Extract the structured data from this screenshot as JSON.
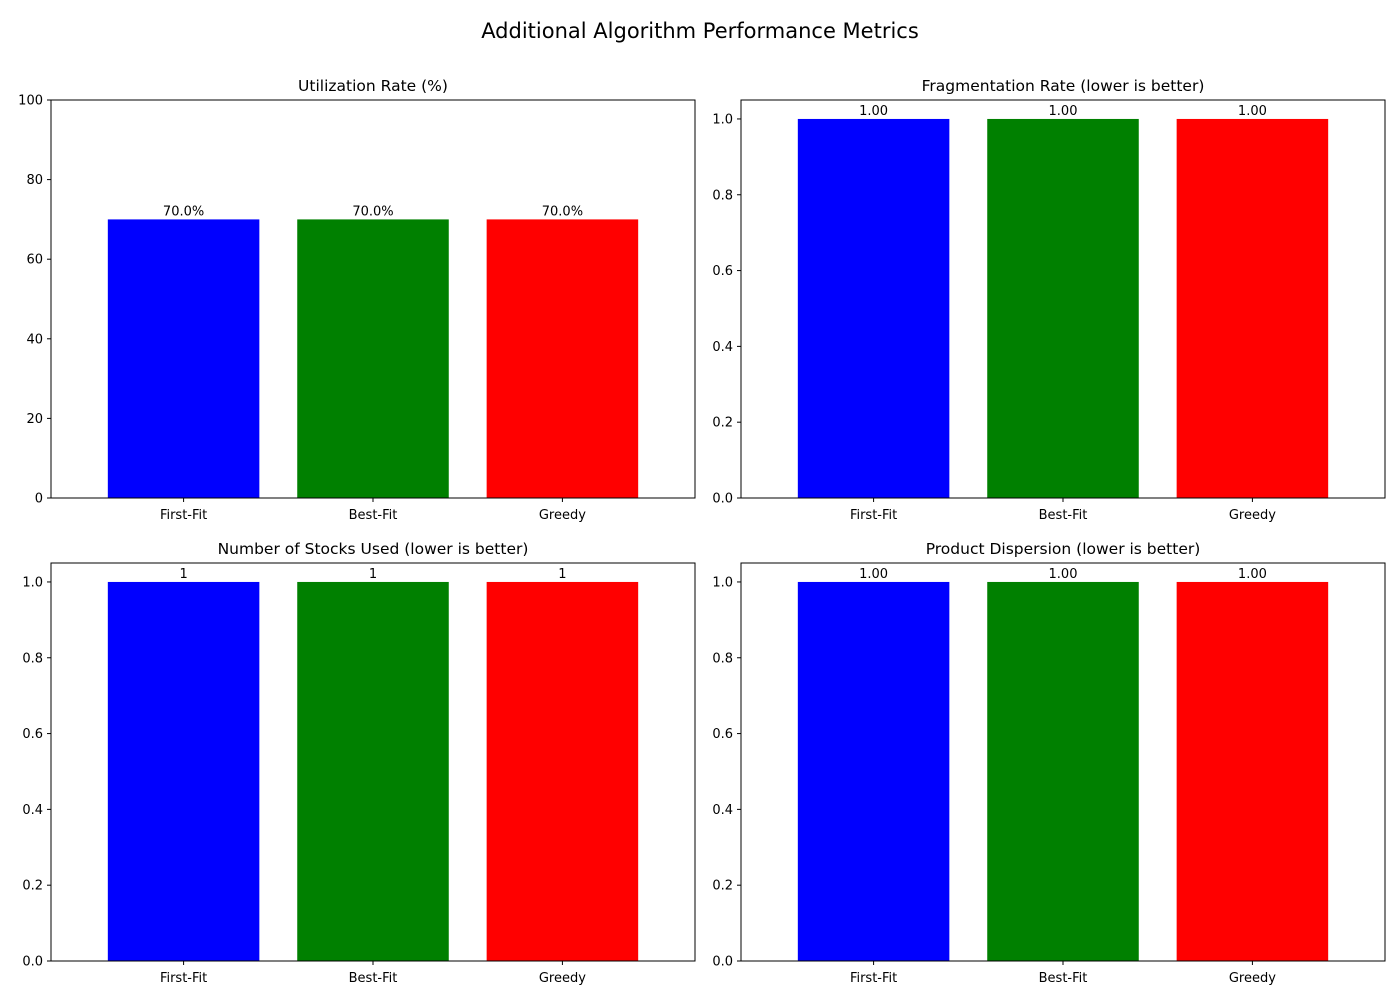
{
  "figure_title": "Additional Algorithm Performance Metrics",
  "bar_colors": [
    "#0000ff",
    "#008000",
    "#ff0000"
  ],
  "chart_data": [
    {
      "type": "bar",
      "title": "Utilization Rate (%)",
      "categories": [
        "First-Fit",
        "Best-Fit",
        "Greedy"
      ],
      "values": [
        70.0,
        70.0,
        70.0
      ],
      "data_labels": [
        "70.0%",
        "70.0%",
        "70.0%"
      ],
      "ylim": [
        0,
        100
      ],
      "yticks": [
        "0",
        "20",
        "40",
        "60",
        "80",
        "100"
      ],
      "xlabel": "",
      "ylabel": "",
      "grid": false
    },
    {
      "type": "bar",
      "title": "Fragmentation Rate (lower is better)",
      "categories": [
        "First-Fit",
        "Best-Fit",
        "Greedy"
      ],
      "values": [
        1.0,
        1.0,
        1.0
      ],
      "data_labels": [
        "1.00",
        "1.00",
        "1.00"
      ],
      "ylim": [
        0,
        1.05
      ],
      "yticks": [
        "0.0",
        "0.2",
        "0.4",
        "0.6",
        "0.8",
        "1.0"
      ],
      "xlabel": "",
      "ylabel": "",
      "grid": false
    },
    {
      "type": "bar",
      "title": "Number of Stocks Used (lower is better)",
      "categories": [
        "First-Fit",
        "Best-Fit",
        "Greedy"
      ],
      "values": [
        1,
        1,
        1
      ],
      "data_labels": [
        "1",
        "1",
        "1"
      ],
      "ylim": [
        0,
        1.05
      ],
      "yticks": [
        "0.0",
        "0.2",
        "0.4",
        "0.6",
        "0.8",
        "1.0"
      ],
      "xlabel": "",
      "ylabel": "",
      "grid": false
    },
    {
      "type": "bar",
      "title": "Product Dispersion (lower is better)",
      "categories": [
        "First-Fit",
        "Best-Fit",
        "Greedy"
      ],
      "values": [
        1.0,
        1.0,
        1.0
      ],
      "data_labels": [
        "1.00",
        "1.00",
        "1.00"
      ],
      "ylim": [
        0,
        1.05
      ],
      "yticks": [
        "0.0",
        "0.2",
        "0.4",
        "0.6",
        "0.8",
        "1.0"
      ],
      "xlabel": "",
      "ylabel": "",
      "grid": false
    }
  ]
}
